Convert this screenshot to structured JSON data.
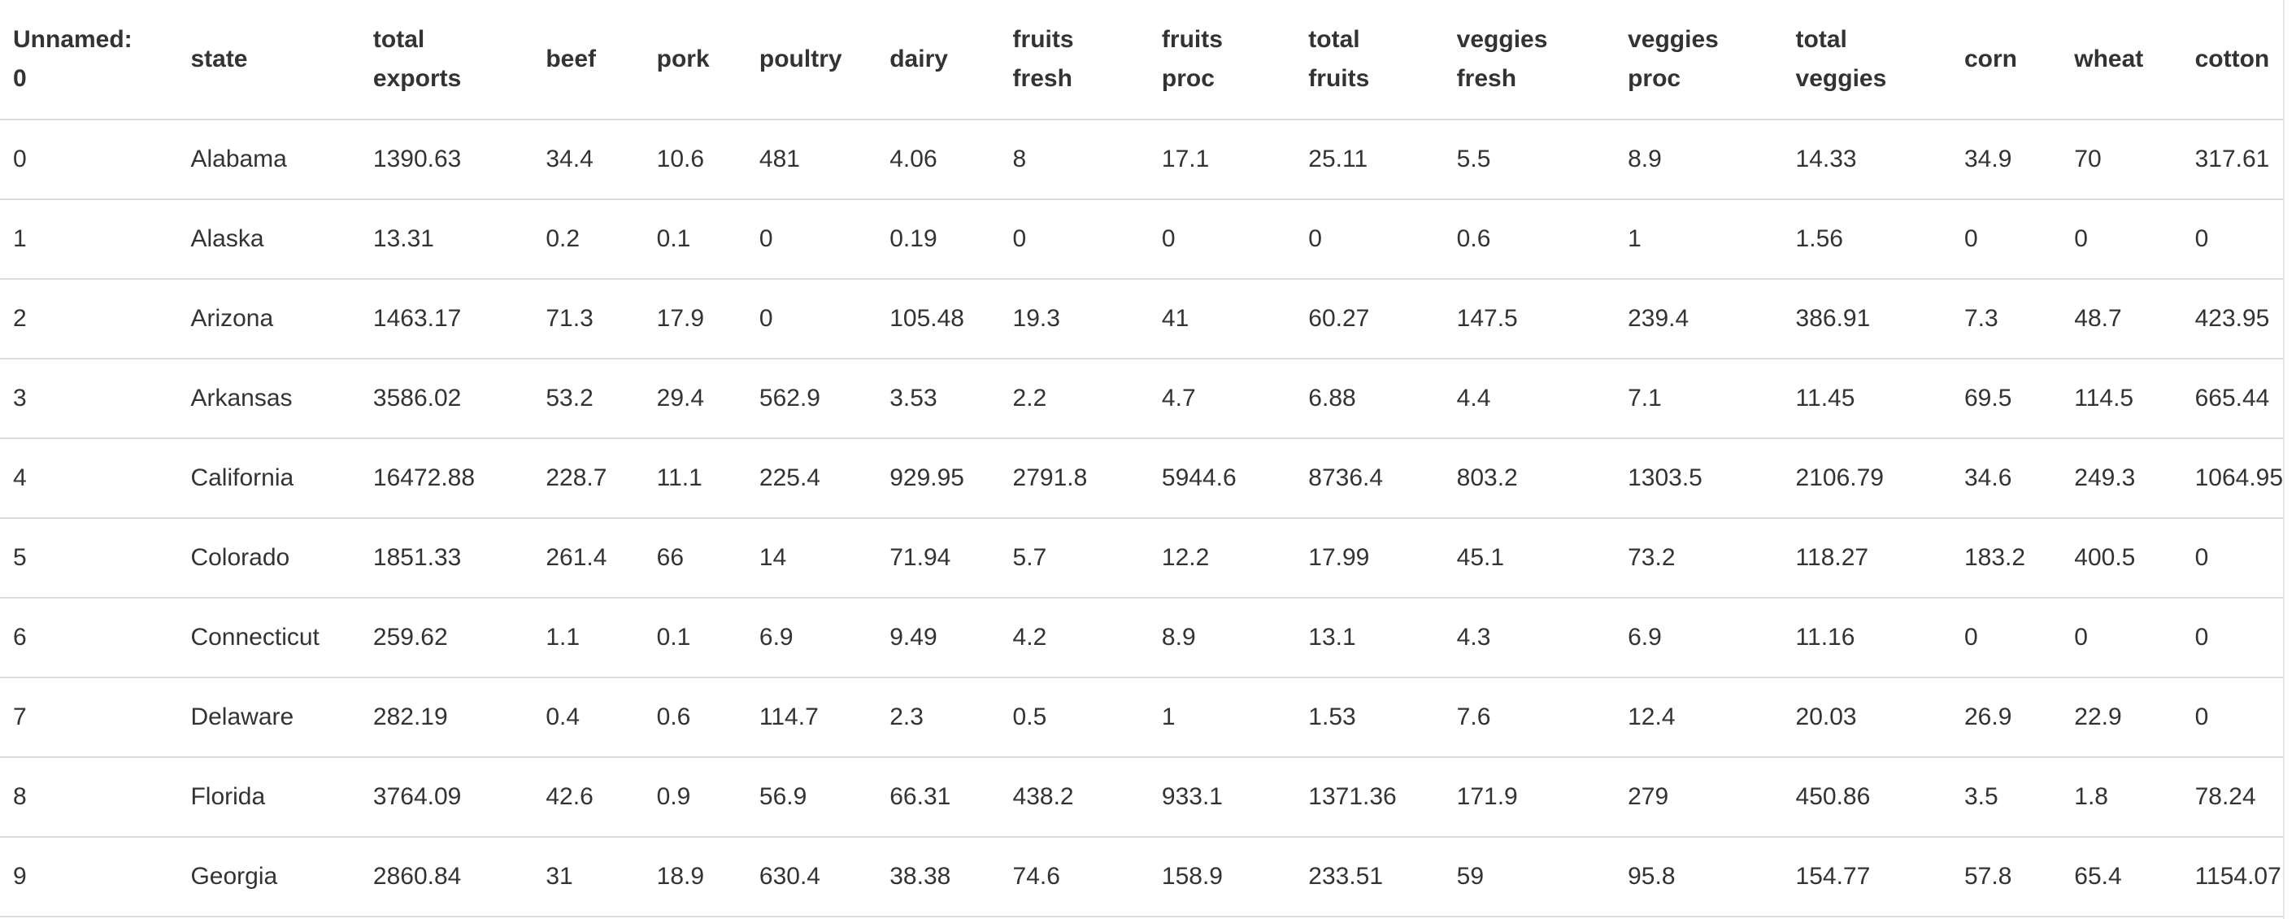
{
  "table": {
    "columns": [
      "Unnamed:\n0",
      "state",
      "total\nexports",
      "beef",
      "pork",
      "poultry",
      "dairy",
      "fruits\nfresh",
      "fruits\nproc",
      "total\nfruits",
      "veggies\nfresh",
      "veggies\nproc",
      "total\nveggies",
      "corn",
      "wheat",
      "cotton"
    ],
    "rows": [
      [
        "0",
        "Alabama",
        "1390.63",
        "34.4",
        "10.6",
        "481",
        "4.06",
        "8",
        "17.1",
        "25.11",
        "5.5",
        "8.9",
        "14.33",
        "34.9",
        "70",
        "317.61"
      ],
      [
        "1",
        "Alaska",
        "13.31",
        "0.2",
        "0.1",
        "0",
        "0.19",
        "0",
        "0",
        "0",
        "0.6",
        "1",
        "1.56",
        "0",
        "0",
        "0"
      ],
      [
        "2",
        "Arizona",
        "1463.17",
        "71.3",
        "17.9",
        "0",
        "105.48",
        "19.3",
        "41",
        "60.27",
        "147.5",
        "239.4",
        "386.91",
        "7.3",
        "48.7",
        "423.95"
      ],
      [
        "3",
        "Arkansas",
        "3586.02",
        "53.2",
        "29.4",
        "562.9",
        "3.53",
        "2.2",
        "4.7",
        "6.88",
        "4.4",
        "7.1",
        "11.45",
        "69.5",
        "114.5",
        "665.44"
      ],
      [
        "4",
        "California",
        "16472.88",
        "228.7",
        "11.1",
        "225.4",
        "929.95",
        "2791.8",
        "5944.6",
        "8736.4",
        "803.2",
        "1303.5",
        "2106.79",
        "34.6",
        "249.3",
        "1064.95"
      ],
      [
        "5",
        "Colorado",
        "1851.33",
        "261.4",
        "66",
        "14",
        "71.94",
        "5.7",
        "12.2",
        "17.99",
        "45.1",
        "73.2",
        "118.27",
        "183.2",
        "400.5",
        "0"
      ],
      [
        "6",
        "Connecticut",
        "259.62",
        "1.1",
        "0.1",
        "6.9",
        "9.49",
        "4.2",
        "8.9",
        "13.1",
        "4.3",
        "6.9",
        "11.16",
        "0",
        "0",
        "0"
      ],
      [
        "7",
        "Delaware",
        "282.19",
        "0.4",
        "0.6",
        "114.7",
        "2.3",
        "0.5",
        "1",
        "1.53",
        "7.6",
        "12.4",
        "20.03",
        "26.9",
        "22.9",
        "0"
      ],
      [
        "8",
        "Florida",
        "3764.09",
        "42.6",
        "0.9",
        "56.9",
        "66.31",
        "438.2",
        "933.1",
        "1371.36",
        "171.9",
        "279",
        "450.86",
        "3.5",
        "1.8",
        "78.24"
      ],
      [
        "9",
        "Georgia",
        "2860.84",
        "31",
        "18.9",
        "630.4",
        "38.38",
        "74.6",
        "158.9",
        "233.51",
        "59",
        "95.8",
        "154.77",
        "57.8",
        "65.4",
        "1154.07"
      ]
    ]
  }
}
